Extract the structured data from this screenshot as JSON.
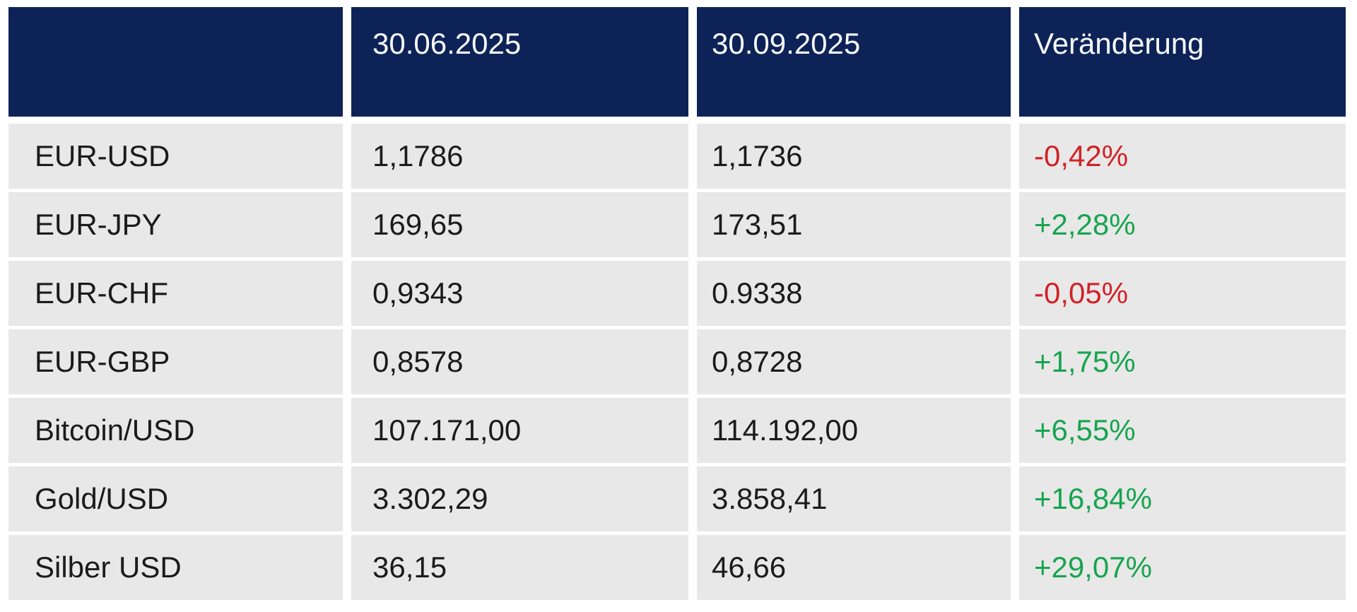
{
  "colors": {
    "header_bg": "#0d2357",
    "row_bg": "#e8e8e8",
    "negative_red": "#d12227",
    "positive_green": "#17a44f",
    "body_text": "#1b1b1b",
    "header_text": "#fafbfd"
  },
  "table": {
    "columns": [
      {
        "label": ""
      },
      {
        "label": "30.06.2025"
      },
      {
        "label": "30.09.2025"
      },
      {
        "label": "Veränderung"
      }
    ],
    "rows": [
      {
        "label": "EUR-USD",
        "v1": "1,1786",
        "v2": "1,1736",
        "change": "-0,42%",
        "direction": "down"
      },
      {
        "label": "EUR-JPY",
        "v1": "169,65",
        "v2": "173,51",
        "change": "+2,28%",
        "direction": "up"
      },
      {
        "label": "EUR-CHF",
        "v1": "0,9343",
        "v2": "0.9338",
        "change": "-0,05%",
        "direction": "down"
      },
      {
        "label": "EUR-GBP",
        "v1": "0,8578",
        "v2": "0,8728",
        "change": "+1,75%",
        "direction": "up"
      },
      {
        "label": "Bitcoin/USD",
        "v1": "107.171,00",
        "v2": "114.192,00",
        "change": "+6,55%",
        "direction": "up"
      },
      {
        "label": "Gold/USD",
        "v1": "3.302,29",
        "v2": "3.858,41",
        "change": "+16,84%",
        "direction": "up"
      },
      {
        "label": "Silber USD",
        "v1": "36,15",
        "v2": "46,66",
        "change": "+29,07%",
        "direction": "up"
      }
    ]
  },
  "chart_data": {
    "type": "table",
    "title": "",
    "columns": [
      "",
      "30.06.2025",
      "30.09.2025",
      "Veränderung"
    ],
    "rows": [
      [
        "EUR-USD",
        "1,1786",
        "1,1736",
        "-0,42%"
      ],
      [
        "EUR-JPY",
        "169,65",
        "173,51",
        "+2,28%"
      ],
      [
        "EUR-CHF",
        "0,9343",
        "0.9338",
        "-0,05%"
      ],
      [
        "EUR-GBP",
        "0,8578",
        "0,8728",
        "+1,75%"
      ],
      [
        "Bitcoin/USD",
        "107.171,00",
        "114.192,00",
        "+6,55%"
      ],
      [
        "Gold/USD",
        "3.302,29",
        "3.858,41",
        "+16,84%"
      ],
      [
        "Silber USD",
        "36,15",
        "46,66",
        "+29,07%"
      ]
    ],
    "change_directions": [
      "down",
      "up",
      "down",
      "up",
      "up",
      "up",
      "up"
    ],
    "layout_hints": {
      "header_style": "navy background, white text",
      "negative_changes": "red",
      "positive_changes": "green"
    }
  }
}
